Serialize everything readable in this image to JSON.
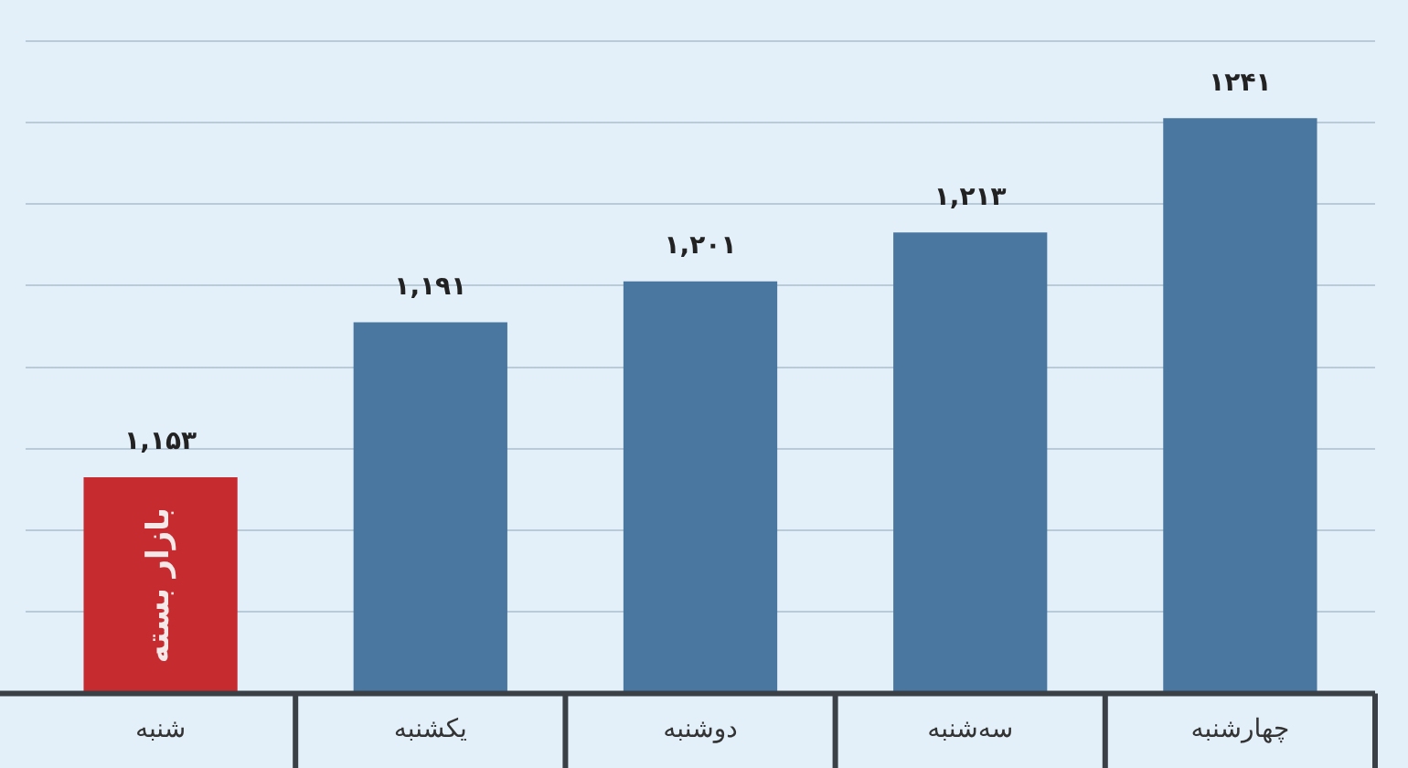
{
  "chart_data": {
    "type": "bar",
    "categories": [
      "شنبه",
      "یکشنبه",
      "دوشنبه",
      "سه‌شنبه",
      "چهارشنبه"
    ],
    "values": [
      1153,
      1191,
      1201,
      1213,
      1241
    ],
    "colors": [
      "#c62b30",
      "#4a77a0",
      "#4a77a0",
      "#4a77a0",
      "#4a77a0"
    ],
    "value_labels": [
      "۱,۱۵۳",
      "۱,۱۹۱",
      "۱,۲۰۱",
      "۱,۲۱۳",
      "۱۲۴۱"
    ],
    "annotations": [
      "بازار بسته"
    ],
    "ylim": [
      1100,
      1270
    ],
    "yticks": [
      {
        "value": 1120,
        "label": null
      },
      {
        "value": 1140,
        "label": null
      },
      {
        "value": 1160,
        "label": null
      },
      {
        "value": 1180,
        "label": null
      },
      {
        "value": 1200,
        "label": null
      },
      {
        "value": 1220,
        "label": null
      },
      {
        "value": 1240,
        "label": null
      },
      {
        "value": 1260,
        "label": null
      }
    ],
    "tick_labels": "x",
    "grid": "y"
  }
}
